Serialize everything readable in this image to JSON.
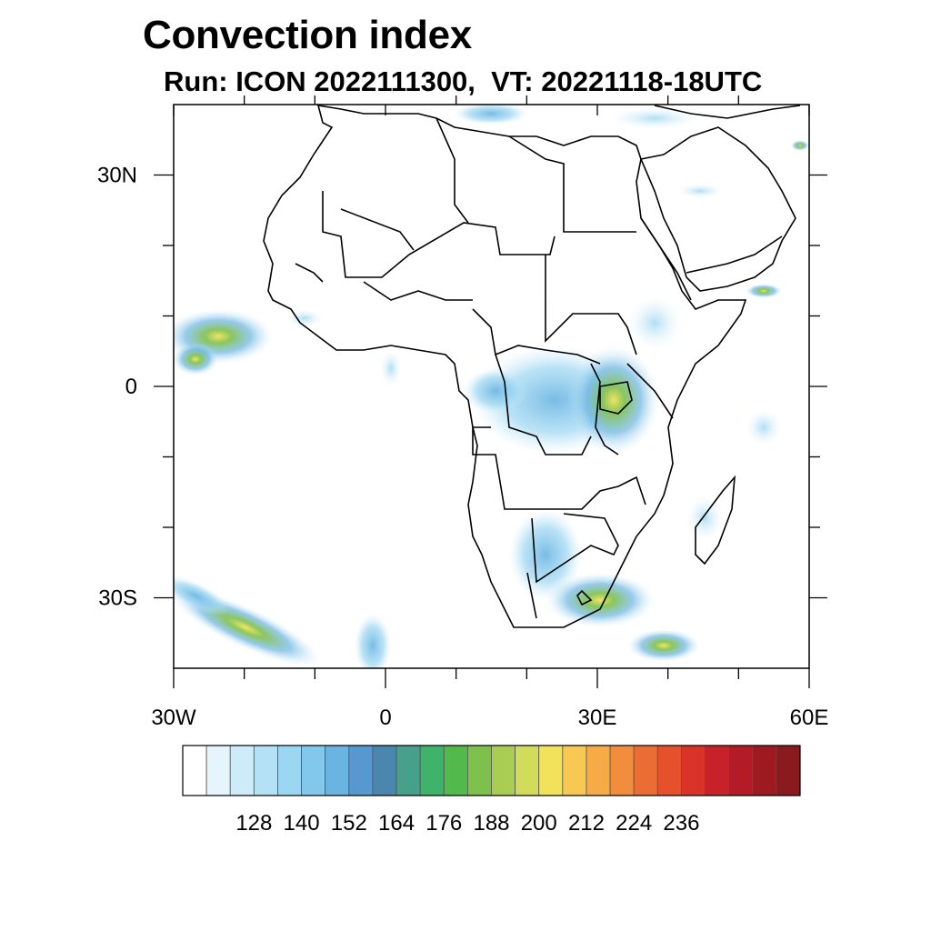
{
  "title": "Convection index",
  "subtitle": "Run: ICON 2022111300,  VT: 20221118-18UTC",
  "map": {
    "lon_range": [
      -30,
      60
    ],
    "lat_range": [
      -40,
      40
    ],
    "lon_ticks": [
      {
        "value": -30,
        "label": "30W"
      },
      {
        "value": 0,
        "label": "0"
      },
      {
        "value": 30,
        "label": "30E"
      },
      {
        "value": 60,
        "label": "60E"
      }
    ],
    "lat_ticks": [
      {
        "value": 30,
        "label": "30N"
      },
      {
        "value": 0,
        "label": "0"
      },
      {
        "value": -30,
        "label": "30S"
      }
    ],
    "minor_lon": [
      -20,
      -10,
      10,
      20,
      40,
      50
    ],
    "minor_lat": [
      20,
      10,
      -10,
      -20
    ]
  },
  "colorbar": {
    "colors": [
      "#ffffff",
      "#e6f5fc",
      "#cdebf8",
      "#b4e1f5",
      "#9bd6f2",
      "#82c8ec",
      "#6ab4e2",
      "#5798d0",
      "#4a86ad",
      "#46a08a",
      "#3fb26b",
      "#51ba4a",
      "#7ec04c",
      "#a8cd52",
      "#d0dc5a",
      "#f2e25a",
      "#f7c952",
      "#f6ab47",
      "#f28d3d",
      "#ec6d33",
      "#e4512c",
      "#da342a",
      "#c7222a",
      "#b31b27",
      "#9e1a21",
      "#8a1a1e"
    ],
    "labels": [
      "128",
      "140",
      "152",
      "164",
      "176",
      "188",
      "200",
      "212",
      "224",
      "236"
    ]
  }
}
